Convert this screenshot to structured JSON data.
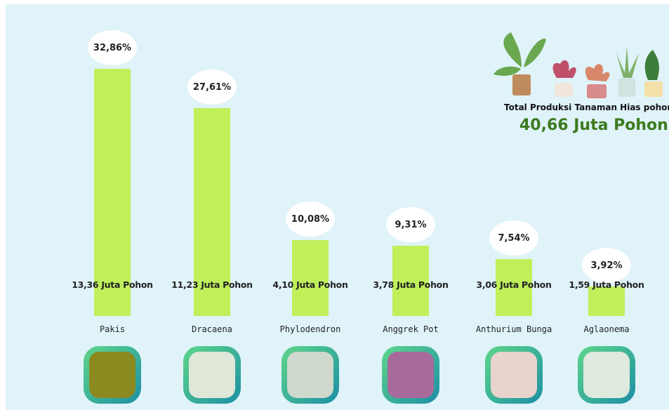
{
  "chart_data": {
    "type": "bar",
    "categories": [
      "Pakis",
      "Dracaena",
      "Phylodendron",
      "Anggrek Pot",
      "Anthurium Bunga",
      "Aglaonema"
    ],
    "values": [
      32.86,
      27.61,
      10.08,
      9.31,
      7.54,
      3.92
    ],
    "value_labels": [
      "32,86%",
      "27,61%",
      "10,08%",
      "9,31%",
      "7,54%",
      "3,92%"
    ],
    "amount_labels": [
      "13,36 Juta Pohon",
      "11,23 Juta Pohon",
      "4,10 Juta Pohon",
      "3,78 Juta Pohon",
      "3,06 Juta Pohon",
      "1,59 Juta Pohon"
    ],
    "color": "#bff05a",
    "total_label": "Total Produksi Tanaman Hias pohon",
    "total_value": "40,66 Juta Pohon"
  }
}
